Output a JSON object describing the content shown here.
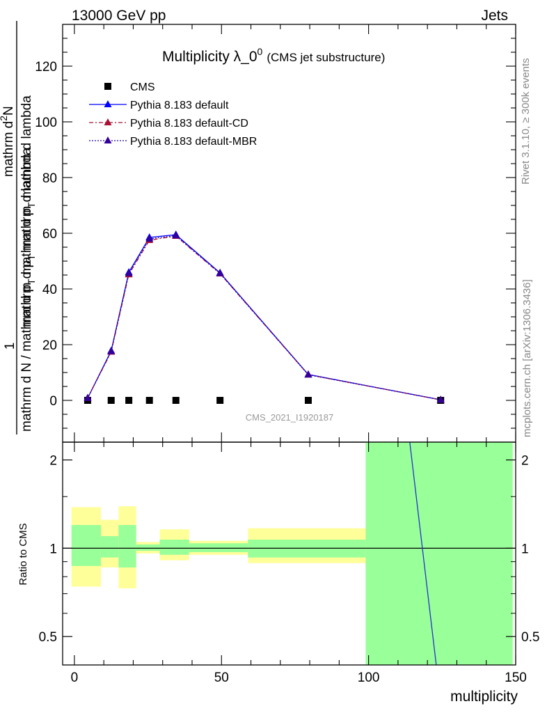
{
  "header": {
    "left": "13000 GeV pp",
    "right": "Jets"
  },
  "title": {
    "main": "Multiplicity λ_0",
    "sup": "0",
    "sub": "(CMS jet substructure)"
  },
  "watermark": "CMS_2021_I1920187",
  "side_text": {
    "rivet": "Rivet 3.1.10, ≥ 300k events",
    "mcplots": "mcplots.cern.ch [arXiv:1306.3436]"
  },
  "ylabel": {
    "top": "mathrm d",
    "top_sup": "2",
    "top_end": "N",
    "frac_den": "mathrm d p",
    "frac_den_sub": "T",
    "frac_den_end": " mathrm d lambda",
    "bottom": "mathrm d N / mathrm d p",
    "bottom_sub": "T",
    "bottom_end": " mathrm d p",
    "bottom_sub2": "T",
    "bottom_end2": " mathrm d lambda",
    "one": "1"
  },
  "ratio_ylabel": "Ratio to CMS",
  "xlabel": "multiplicity",
  "chart_data": {
    "type": "line",
    "xlim": [
      -4,
      150
    ],
    "ylim": [
      -15,
      135
    ],
    "x_ticks": [
      0,
      50,
      100,
      150
    ],
    "y_ticks": [
      0,
      20,
      40,
      60,
      80,
      100,
      120
    ],
    "legend_position": "top-left",
    "data_series": {
      "name": "CMS",
      "color": "#000000",
      "x": [
        4.5,
        12.5,
        18.5,
        25.5,
        34.5,
        49.5,
        79.5,
        124.5
      ],
      "y": [
        0,
        0,
        0,
        0,
        0,
        0,
        0,
        0
      ]
    },
    "mc_x": [
      4.5,
      12.5,
      18.5,
      25.5,
      34.5,
      49.5,
      79.5,
      124.5
    ],
    "series": [
      {
        "name": "Pythia 8.183 default",
        "color": "#0000ff",
        "style": "solid",
        "marker_color": "#0000ff",
        "values": [
          0.8,
          17.8,
          46,
          58.5,
          59.5,
          45.8,
          9.3,
          0.2
        ]
      },
      {
        "name": "Pythia 8.183 default-CD",
        "color": "#aa1133",
        "style": "dashdot",
        "marker_color": "#aa1133",
        "values": [
          0.8,
          17.4,
          45.2,
          57.5,
          59,
          45.5,
          9.2,
          0.2
        ]
      },
      {
        "name": "Pythia 8.183 default-MBR",
        "color": "#2200aa",
        "style": "dotted",
        "marker_color": "#330099",
        "values": [
          0.8,
          17.6,
          45.6,
          58,
          59.2,
          45.6,
          9.2,
          0.2
        ]
      }
    ],
    "ratio": {
      "ylim": [
        0.4,
        2.3
      ],
      "y_ticks": [
        0.5,
        1,
        2
      ],
      "y_tick_labels": [
        "0.5",
        "1",
        "2"
      ],
      "bins": [
        {
          "x0": -1,
          "x1": 9,
          "yellow": [
            0.74,
            1.38
          ],
          "green": [
            0.87,
            1.2
          ]
        },
        {
          "x0": 9,
          "x1": 15,
          "yellow": [
            0.86,
            1.25
          ],
          "green": [
            0.93,
            1.1
          ]
        },
        {
          "x0": 15,
          "x1": 21,
          "yellow": [
            0.73,
            1.39
          ],
          "green": [
            0.86,
            1.2
          ]
        },
        {
          "x0": 21,
          "x1": 29,
          "yellow": [
            0.96,
            1.05
          ],
          "green": [
            0.98,
            1.03
          ]
        },
        {
          "x0": 29,
          "x1": 39,
          "yellow": [
            0.91,
            1.16
          ],
          "green": [
            0.95,
            1.07
          ]
        },
        {
          "x0": 39,
          "x1": 59,
          "yellow": [
            0.95,
            1.06
          ],
          "green": [
            0.97,
            1.04
          ]
        },
        {
          "x0": 59,
          "x1": 99,
          "yellow": [
            0.89,
            1.17
          ],
          "green": [
            0.93,
            1.07
          ]
        },
        {
          "x0": 99,
          "x1": 149,
          "yellow": [
            0.3,
            2.5
          ],
          "green": [
            0.3,
            2.5
          ]
        }
      ],
      "mc_line": {
        "x": [
          114,
          123
        ],
        "y": [
          2.3,
          0.4
        ]
      }
    }
  },
  "colors": {
    "yellow": "#ffff99",
    "green": "#99ff99",
    "axis": "#000000"
  }
}
